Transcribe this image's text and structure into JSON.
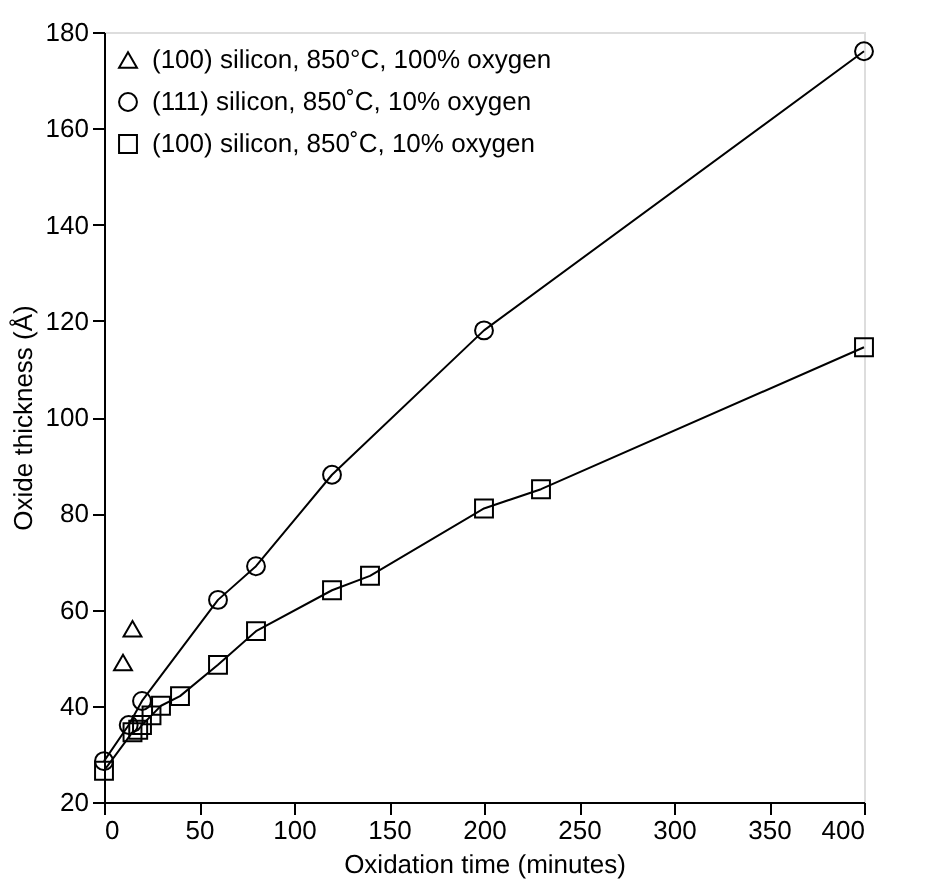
{
  "chart_data": {
    "type": "line",
    "xlabel": "Oxidation time (minutes)",
    "ylabel": "Oxide thickness (Å)",
    "xlim": [
      0,
      400
    ],
    "xticks": [
      0,
      50,
      100,
      150,
      200,
      250,
      300,
      350,
      400
    ],
    "ylim": [
      20,
      180
    ],
    "yticks": [
      20,
      40,
      60,
      80,
      100,
      120,
      140,
      160,
      180
    ],
    "grid": false,
    "legend": "top left",
    "series": [
      {
        "name": "(100) silicon, 850°C, 100% oxygen",
        "type": "scatter",
        "marker": "triangle",
        "color": "#000000",
        "x": [
          10,
          15
        ],
        "values": [
          49,
          56
        ]
      },
      {
        "name": "(111) silicon, 850˚C, 10% oxygen",
        "marker": "circle",
        "color": "#000000",
        "x": [
          0,
          13,
          20,
          60,
          80,
          120,
          200,
          400
        ],
        "values": [
          28.5,
          36,
          41,
          62,
          69,
          88,
          118,
          176
        ]
      },
      {
        "name": "(100) silicon, 850˚C, 10% oxygen",
        "marker": "square",
        "color": "#000000",
        "x": [
          0,
          15,
          18,
          20,
          25,
          30,
          40,
          60,
          80,
          120,
          140,
          200,
          230,
          400
        ],
        "values": [
          26.5,
          34.5,
          35,
          36,
          38,
          40,
          42,
          48.5,
          55.5,
          64,
          67,
          81,
          85,
          114.5
        ]
      }
    ]
  }
}
